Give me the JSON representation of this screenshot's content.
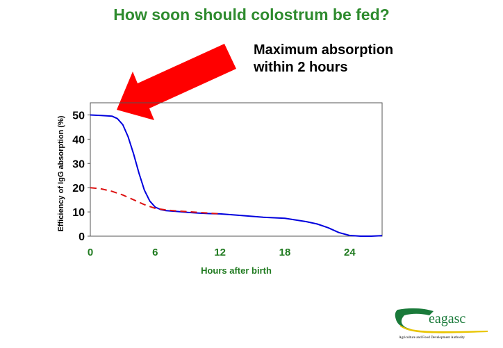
{
  "slide": {
    "title": "How soon should colostrum be fed?",
    "callout_line1": "Maximum absorption",
    "callout_line2": "within 2 hours"
  },
  "logo": {
    "name": "eagasc",
    "tagline": "Agriculture and Food Development Authority"
  },
  "colors": {
    "title": "#2e8b2e",
    "tick_green": "#1f7a1f",
    "series_solid": "#0000dd",
    "series_dashed": "#dd1111",
    "arrow": "#ff0000",
    "logo_green": "#1a7a3a",
    "logo_yellow": "#e8c400"
  },
  "chart_data": {
    "type": "line",
    "title": "",
    "xlabel": "Hours after birth",
    "ylabel": "Efficiency of IgG absorption (%)",
    "xlim": [
      0,
      27
    ],
    "ylim": [
      0,
      55
    ],
    "xticks": [
      0,
      6,
      12,
      18,
      24
    ],
    "yticks": [
      0,
      10,
      20,
      30,
      40,
      50
    ],
    "grid": false,
    "series": [
      {
        "style": "solid",
        "points": [
          [
            0,
            50
          ],
          [
            1,
            49.8
          ],
          [
            2,
            49.5
          ],
          [
            2.5,
            48.5
          ],
          [
            3,
            46
          ],
          [
            3.5,
            41
          ],
          [
            4,
            34
          ],
          [
            4.5,
            26
          ],
          [
            5,
            19
          ],
          [
            5.5,
            14.5
          ],
          [
            6,
            12
          ],
          [
            6.5,
            11
          ],
          [
            7,
            10.5
          ],
          [
            8,
            10.2
          ],
          [
            9,
            9.8
          ],
          [
            10,
            9.5
          ],
          [
            11,
            9.3
          ],
          [
            12,
            9.2
          ],
          [
            14,
            8.5
          ],
          [
            16,
            7.8
          ],
          [
            18,
            7.4
          ],
          [
            20,
            6
          ],
          [
            21,
            5
          ],
          [
            22,
            3.5
          ],
          [
            23,
            1.5
          ],
          [
            24,
            0.3
          ],
          [
            25,
            0
          ],
          [
            26,
            0
          ],
          [
            27,
            0.2
          ]
        ]
      },
      {
        "style": "dashed",
        "points": [
          [
            0,
            20
          ],
          [
            1,
            19.5
          ],
          [
            2,
            18.5
          ],
          [
            3,
            17
          ],
          [
            4,
            15
          ],
          [
            5,
            13
          ],
          [
            6,
            11.5
          ],
          [
            7,
            10.8
          ],
          [
            8,
            10.4
          ],
          [
            10,
            9.8
          ],
          [
            12,
            9.2
          ]
        ]
      }
    ]
  }
}
